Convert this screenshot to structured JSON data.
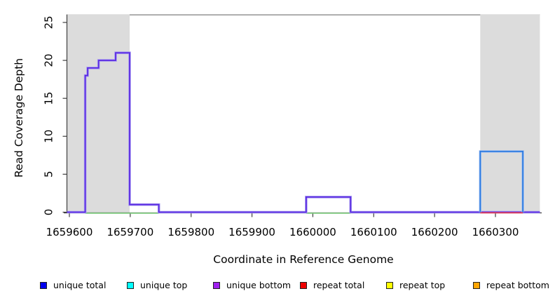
{
  "figure": {
    "xlabel": "Coordinate in Reference Genome",
    "ylabel": "Read Coverage Depth"
  },
  "chart_data": {
    "type": "line",
    "subtype": "step-coverage",
    "title": "",
    "xlabel": "Coordinate in Reference Genome",
    "ylabel": "Read Coverage Depth",
    "xlim": [
      1659596,
      1660373
    ],
    "ylim": [
      0,
      26
    ],
    "x_ticks": [
      1659600,
      1659700,
      1659800,
      1659900,
      1660000,
      1660100,
      1660200,
      1660300
    ],
    "y_ticks": [
      0,
      5,
      10,
      15,
      20,
      25
    ],
    "grid": "off",
    "legend_position": "bottom",
    "shaded_regions": [
      {
        "x0": 1659596,
        "x1": 1659699
      },
      {
        "x0": 1660275,
        "x1": 1660373
      }
    ],
    "top_reference_line_y": 26,
    "series": [
      {
        "name": "unique-coverage-step",
        "legend_match": "unique total / unique bottom (overlapping)",
        "color_core": "#5A2BE2",
        "color_halo": "#A89BF0",
        "points": [
          [
            1659596,
            0
          ],
          [
            1659626,
            0
          ],
          [
            1659626,
            18
          ],
          [
            1659630,
            18
          ],
          [
            1659630,
            19
          ],
          [
            1659648,
            19
          ],
          [
            1659648,
            20
          ],
          [
            1659676,
            20
          ],
          [
            1659676,
            21
          ],
          [
            1659699,
            21
          ],
          [
            1659699,
            1
          ],
          [
            1659747,
            1
          ],
          [
            1659747,
            0
          ],
          [
            1659989,
            0
          ],
          [
            1659989,
            2
          ],
          [
            1660062,
            2
          ],
          [
            1660062,
            0
          ],
          [
            1660373,
            0
          ]
        ]
      },
      {
        "name": "unique-total-block",
        "legend_match": "unique total",
        "color_core": "#2F7CE0",
        "color_halo": "#9BBDF2",
        "points": [
          [
            1660275,
            0
          ],
          [
            1660275,
            8
          ],
          [
            1660345,
            8
          ],
          [
            1660345,
            0
          ]
        ]
      },
      {
        "name": "green-baseline",
        "legend_match": "unique top (at zero depth)",
        "color": "#7CCD7C",
        "depth": 0,
        "segments": [
          [
            1659626,
            1659747
          ],
          [
            1659989,
            1660062
          ]
        ]
      },
      {
        "name": "red-baseline",
        "legend_match": "repeat total (at zero depth)",
        "color": "#E83D52",
        "depth": 0,
        "segments": [
          [
            1660275,
            1660345
          ]
        ]
      }
    ],
    "legend": [
      {
        "label": "unique total",
        "color": "#0000EE"
      },
      {
        "label": "unique top",
        "color": "#00FFFF"
      },
      {
        "label": "unique bottom",
        "color": "#A020F0"
      },
      {
        "label": "repeat total",
        "color": "#EE0000"
      },
      {
        "label": "repeat top",
        "color": "#FFFF00"
      },
      {
        "label": "repeat bottom",
        "color": "#FFA500"
      }
    ],
    "colors": {
      "shade": "#DCDCDC",
      "top_line": "#8A8A8A",
      "axis": "#3F3F3F"
    }
  }
}
